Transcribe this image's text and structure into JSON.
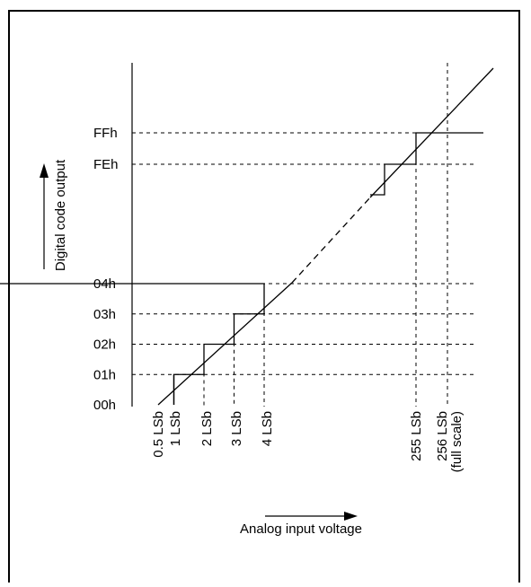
{
  "chart_data": {
    "type": "line",
    "title": "",
    "xlabel": "Analog input voltage",
    "ylabel": "Digital code output",
    "y_codes": [
      {
        "label": "00h",
        "value": 0
      },
      {
        "label": "01h",
        "value": 1
      },
      {
        "label": "02h",
        "value": 2
      },
      {
        "label": "03h",
        "value": 3
      },
      {
        "label": "04h",
        "value": 4
      },
      {
        "label": "FEh",
        "value": 254
      },
      {
        "label": "FFh",
        "value": 255
      }
    ],
    "x_ticks": [
      {
        "label": "0.5 LSb",
        "value": 0.5
      },
      {
        "label": "1 LSb",
        "value": 1
      },
      {
        "label": "2 LSb",
        "value": 2
      },
      {
        "label": "3 LSb",
        "value": 3
      },
      {
        "label": "4 LSb",
        "value": 4
      },
      {
        "label": "255 LSb",
        "value": 255
      },
      {
        "label": "256 LSb (full scale)",
        "value": 256
      }
    ],
    "x_tick_lines": [
      {
        "label": "256 LSb",
        "id": "tick-256-line1"
      },
      {
        "label": "(full scale)",
        "id": "tick-256-line2"
      }
    ],
    "series": [
      {
        "type": "staircase",
        "steps": [
          [
            0,
            0
          ],
          [
            1,
            1
          ],
          [
            2,
            2
          ],
          [
            3,
            3
          ],
          [
            4,
            4
          ],
          [
            254,
            254
          ],
          [
            255,
            255
          ]
        ]
      },
      {
        "type": "ideal-line"
      }
    ],
    "grid": "dashed"
  },
  "colors": {
    "line": "#000000",
    "frame": "#000000",
    "background": "#ffffff"
  }
}
